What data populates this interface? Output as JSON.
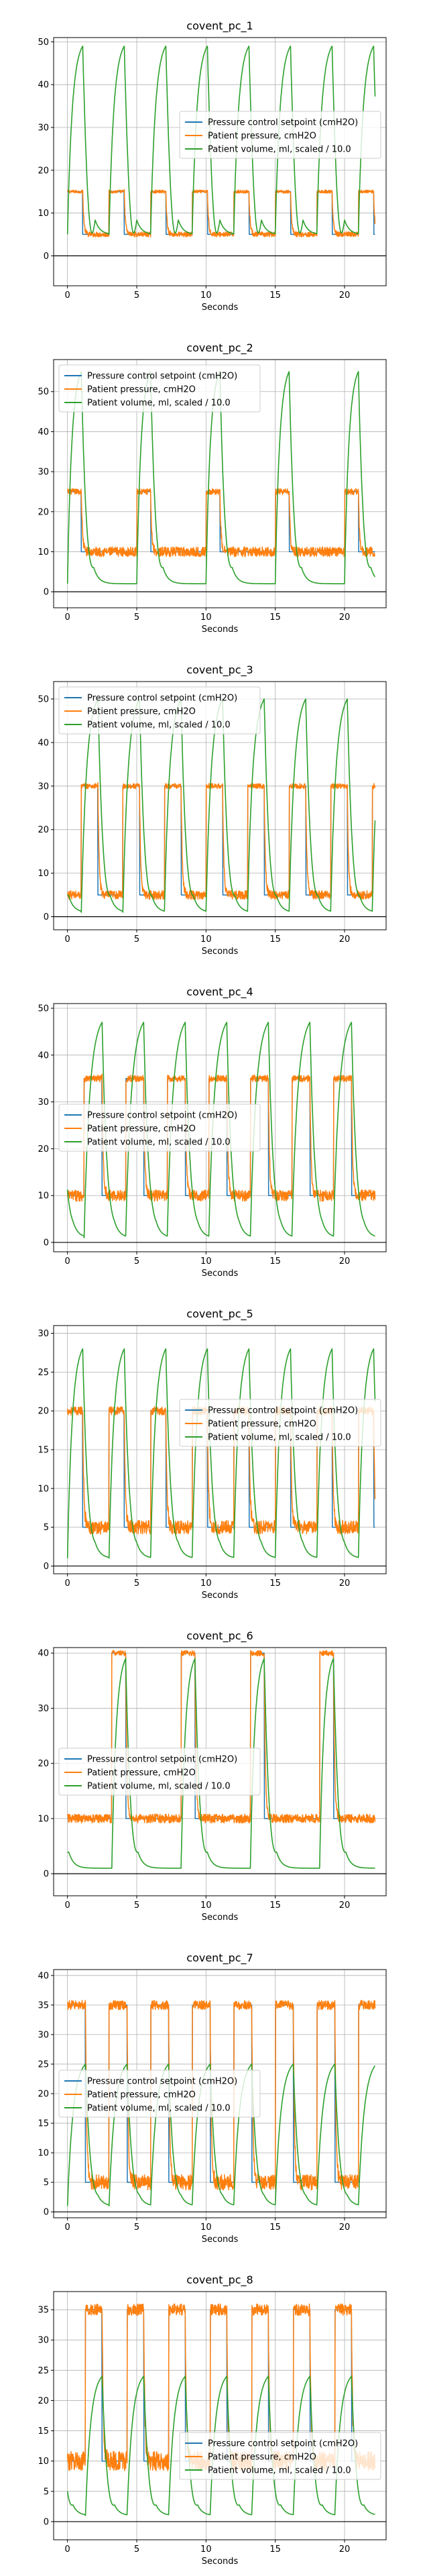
{
  "colors": {
    "setpoint": "#1f77b4",
    "pressure": "#ff7f0e",
    "volume": "#2ca02c"
  },
  "chart_data": [
    {
      "type": "line",
      "title": "covent_pc_1",
      "xlabel": "Seconds",
      "ylabel": "",
      "xlim": [
        -1,
        23
      ],
      "ylim": [
        -7,
        51
      ],
      "grid": true,
      "legend_position": "center-right",
      "xticks": [
        0,
        5,
        10,
        15,
        20
      ],
      "yticks": [
        0,
        10,
        20,
        30,
        40,
        50
      ],
      "pattern": {
        "period": 3.0,
        "phase": 0.0,
        "setpoint_low": 5,
        "setpoint_high": 15,
        "high_duration": 1.1,
        "pressure_noise": 0.6,
        "volume_min": -5,
        "volume_peak": 49,
        "volume_end": 5
      },
      "series": [
        {
          "name": "Pressure control setpoint (cmH2O)",
          "role": "setpoint"
        },
        {
          "name": "Patient pressure, cmH2O",
          "role": "pressure"
        },
        {
          "name": "Patient volume, ml, scaled / 10.0",
          "role": "volume"
        }
      ]
    },
    {
      "type": "line",
      "title": "covent_pc_2",
      "xlabel": "Seconds",
      "ylabel": "",
      "xlim": [
        -1,
        23
      ],
      "ylim": [
        -4,
        58
      ],
      "grid": true,
      "legend_position": "upper-left",
      "xticks": [
        0,
        5,
        10,
        15,
        20
      ],
      "yticks": [
        0,
        10,
        20,
        30,
        40,
        50
      ],
      "pattern": {
        "period": 5.0,
        "phase": 0.0,
        "setpoint_low": 10,
        "setpoint_high": 25,
        "high_duration": 1.0,
        "pressure_noise": 1.2,
        "volume_min": -2,
        "volume_peak": 55,
        "volume_end": 2
      },
      "series": [
        {
          "name": "Pressure control setpoint (cmH2O)",
          "role": "setpoint"
        },
        {
          "name": "Patient pressure, cmH2O",
          "role": "pressure"
        },
        {
          "name": "Patient volume, ml, scaled / 10.0",
          "role": "volume"
        }
      ]
    },
    {
      "type": "line",
      "title": "covent_pc_3",
      "xlabel": "Seconds",
      "ylabel": "",
      "xlim": [
        -1,
        23
      ],
      "ylim": [
        -3,
        54
      ],
      "grid": true,
      "legend_position": "upper-left",
      "xticks": [
        0,
        5,
        10,
        15,
        20
      ],
      "yticks": [
        0,
        10,
        20,
        30,
        40,
        50
      ],
      "pattern": {
        "period": 3.0,
        "phase": 1.0,
        "setpoint_low": 5,
        "setpoint_high": 30,
        "high_duration": 1.2,
        "pressure_noise": 1.0,
        "volume_min": -2,
        "volume_peak": 50,
        "volume_end": 1
      },
      "series": [
        {
          "name": "Pressure control setpoint (cmH2O)",
          "role": "setpoint"
        },
        {
          "name": "Patient pressure, cmH2O",
          "role": "pressure"
        },
        {
          "name": "Patient volume, ml, scaled / 10.0",
          "role": "volume"
        }
      ]
    },
    {
      "type": "line",
      "title": "covent_pc_4",
      "xlabel": "Seconds",
      "ylabel": "",
      "xlim": [
        -1,
        23
      ],
      "ylim": [
        -2,
        51
      ],
      "grid": true,
      "legend_position": "center-left",
      "xticks": [
        0,
        5,
        10,
        15,
        20
      ],
      "yticks": [
        0,
        10,
        20,
        30,
        40,
        50
      ],
      "pattern": {
        "period": 3.0,
        "phase": 1.2,
        "setpoint_low": 10,
        "setpoint_high": 35,
        "high_duration": 1.3,
        "pressure_noise": 1.2,
        "volume_min": 0,
        "volume_peak": 47,
        "volume_end": 1
      },
      "series": [
        {
          "name": "Pressure control setpoint (cmH2O)",
          "role": "setpoint"
        },
        {
          "name": "Patient pressure, cmH2O",
          "role": "pressure"
        },
        {
          "name": "Patient volume, ml, scaled / 10.0",
          "role": "volume"
        }
      ]
    },
    {
      "type": "line",
      "title": "covent_pc_5",
      "xlabel": "Seconds",
      "ylabel": "",
      "xlim": [
        -1,
        23
      ],
      "ylim": [
        -1,
        31
      ],
      "grid": true,
      "legend_position": "center-right",
      "xticks": [
        0,
        5,
        10,
        15,
        20
      ],
      "yticks": [
        0,
        5,
        10,
        15,
        20,
        25,
        30
      ],
      "pattern": {
        "period": 3.0,
        "phase": 0.0,
        "setpoint_low": 5,
        "setpoint_high": 20,
        "high_duration": 1.1,
        "pressure_noise": 0.9,
        "volume_min": 0,
        "volume_peak": 28,
        "volume_end": 1
      },
      "series": [
        {
          "name": "Pressure control setpoint (cmH2O)",
          "role": "setpoint"
        },
        {
          "name": "Patient pressure, cmH2O",
          "role": "pressure"
        },
        {
          "name": "Patient volume, ml, scaled / 10.0",
          "role": "volume"
        }
      ]
    },
    {
      "type": "line",
      "title": "covent_pc_6",
      "xlabel": "Seconds",
      "ylabel": "",
      "xlim": [
        -1,
        23
      ],
      "ylim": [
        -4,
        41
      ],
      "grid": true,
      "legend_position": "center-left",
      "xticks": [
        0,
        5,
        10,
        15,
        20
      ],
      "yticks": [
        0,
        10,
        20,
        30,
        40
      ],
      "pattern": {
        "period": 5.0,
        "phase": 3.2,
        "setpoint_low": 10,
        "setpoint_high": 40,
        "high_duration": 1.0,
        "pressure_noise": 0.8,
        "volume_min": -2,
        "volume_peak": 39,
        "volume_end": 1
      },
      "series": [
        {
          "name": "Pressure control setpoint (cmH2O)",
          "role": "setpoint"
        },
        {
          "name": "Patient pressure, cmH2O",
          "role": "pressure"
        },
        {
          "name": "Patient volume, ml, scaled / 10.0",
          "role": "volume"
        }
      ]
    },
    {
      "type": "line",
      "title": "covent_pc_7",
      "xlabel": "Seconds",
      "ylabel": "",
      "xlim": [
        -1,
        23
      ],
      "ylim": [
        -1,
        41
      ],
      "grid": true,
      "legend_position": "center-left",
      "xticks": [
        0,
        5,
        10,
        15,
        20
      ],
      "yticks": [
        0,
        5,
        10,
        15,
        20,
        25,
        30,
        35,
        40
      ],
      "pattern": {
        "period": 3.0,
        "phase": 0.0,
        "setpoint_low": 5,
        "setpoint_high": 35,
        "high_duration": 1.3,
        "pressure_noise": 1.3,
        "volume_min": 0,
        "volume_peak": 25,
        "volume_end": 1
      },
      "series": [
        {
          "name": "Pressure control setpoint (cmH2O)",
          "role": "setpoint"
        },
        {
          "name": "Patient pressure, cmH2O",
          "role": "pressure"
        },
        {
          "name": "Patient volume, ml, scaled / 10.0",
          "role": "volume"
        }
      ]
    },
    {
      "type": "line",
      "title": "covent_pc_8",
      "xlabel": "Seconds",
      "ylabel": "",
      "xlim": [
        -1,
        23
      ],
      "ylim": [
        -3,
        38
      ],
      "grid": true,
      "legend_position": "lower-right",
      "xticks": [
        0,
        5,
        10,
        15,
        20
      ],
      "yticks": [
        0,
        5,
        10,
        15,
        20,
        25,
        30,
        35
      ],
      "pattern": {
        "period": 3.0,
        "phase": 1.3,
        "setpoint_low": 10,
        "setpoint_high": 35,
        "high_duration": 1.2,
        "pressure_noise": 1.6,
        "volume_min": -1,
        "volume_peak": 24,
        "volume_end": 1
      },
      "series": [
        {
          "name": "Pressure control setpoint (cmH2O)",
          "role": "setpoint"
        },
        {
          "name": "Patient pressure, cmH2O",
          "role": "pressure"
        },
        {
          "name": "Patient volume, ml, scaled / 10.0",
          "role": "volume"
        }
      ]
    }
  ]
}
